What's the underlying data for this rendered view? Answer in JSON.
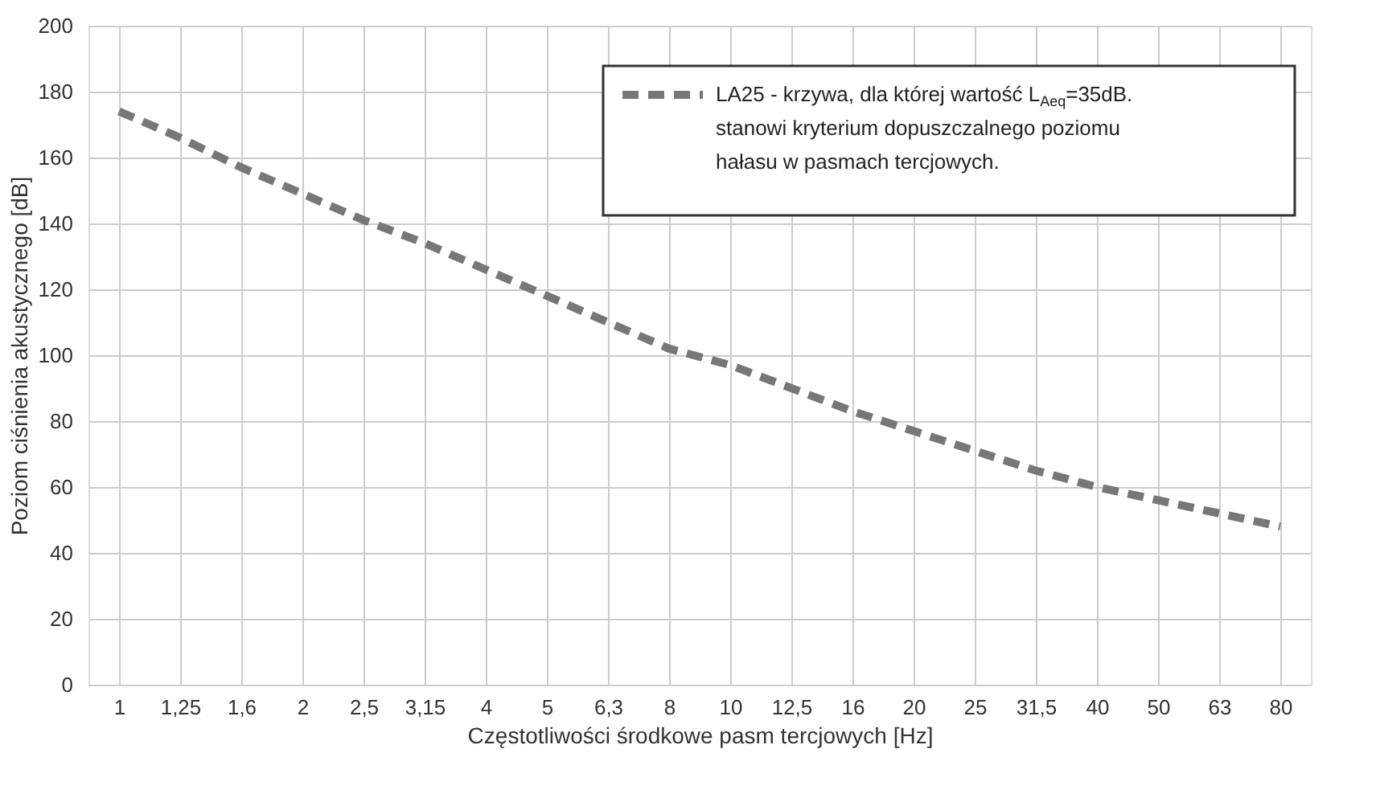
{
  "chart_data": {
    "type": "line",
    "xlabel": "Częstotliwości środkowe pasm tercjowych [Hz]",
    "ylabel": "Poziom ciśnienia akustycznego [dB]",
    "categories": [
      "1",
      "1,25",
      "1,6",
      "2",
      "2,5",
      "3,15",
      "4",
      "5",
      "6,3",
      "8",
      "10",
      "12,5",
      "16",
      "20",
      "25",
      "31,5",
      "40",
      "50",
      "63",
      "80"
    ],
    "series": [
      {
        "name": "LA25 - krzywa, dla której wartość L$_{Aeq}$=35dB. stanowi kryterium dopuszczalnego poziomu hałasu w pasmach tercjowych.",
        "color": "#777777",
        "values": [
          174,
          166,
          157,
          149,
          141,
          134,
          126,
          118,
          110,
          102,
          97,
          90,
          83,
          77,
          71,
          65,
          60,
          56,
          52,
          48
        ]
      }
    ],
    "ylim": [
      0,
      200
    ],
    "yticks": [
      0,
      20,
      40,
      60,
      80,
      100,
      120,
      140,
      160,
      180,
      200
    ],
    "grid": true,
    "legend": "top right",
    "line_style": "dashed",
    "marker": "none"
  }
}
